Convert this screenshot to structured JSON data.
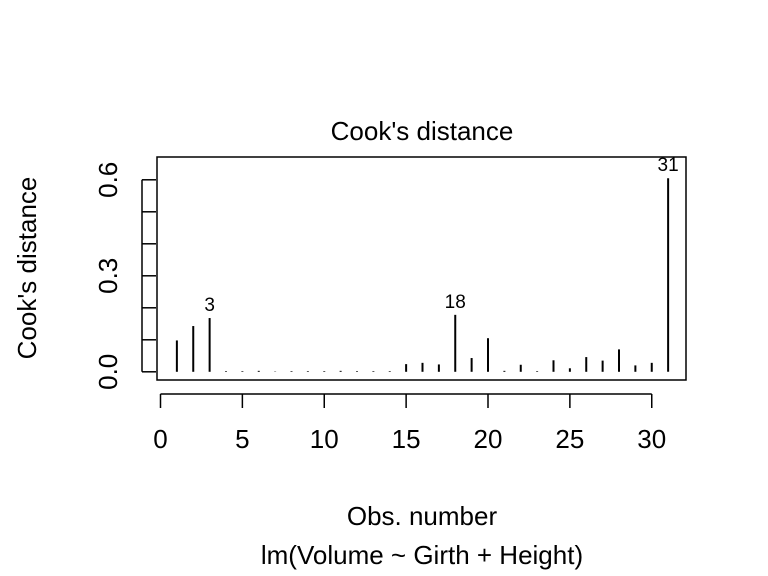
{
  "chart_data": {
    "type": "bar",
    "title": "Cook's distance",
    "xlabel": "Obs. number",
    "subtitle": "lm(Volume ~ Girth + Height)",
    "ylabel": "Cook's distance",
    "xlim": [
      0,
      32
    ],
    "ylim": [
      0,
      0.67
    ],
    "x_ticks": [
      "0",
      "5",
      "10",
      "15",
      "20",
      "25",
      "30"
    ],
    "y_ticks": [
      "0.0",
      "0.3",
      "0.6"
    ],
    "x": [
      1,
      2,
      3,
      4,
      5,
      6,
      7,
      8,
      9,
      10,
      11,
      12,
      13,
      14,
      15,
      16,
      17,
      18,
      19,
      20,
      21,
      22,
      23,
      24,
      25,
      26,
      27,
      28,
      29,
      30,
      31
    ],
    "values": [
      0.098,
      0.143,
      0.168,
      0.002,
      0.002,
      0.003,
      0.001,
      0.002,
      0.002,
      0.002,
      0.003,
      0.002,
      0.002,
      0.002,
      0.024,
      0.028,
      0.023,
      0.178,
      0.043,
      0.105,
      0.003,
      0.022,
      0.002,
      0.036,
      0.011,
      0.046,
      0.035,
      0.07,
      0.02,
      0.028,
      0.605
    ],
    "labeled_points": [
      {
        "x": 3,
        "label": "3"
      },
      {
        "x": 18,
        "label": "18"
      },
      {
        "x": 31,
        "label": "31"
      }
    ],
    "grid": false,
    "legend": "none"
  }
}
